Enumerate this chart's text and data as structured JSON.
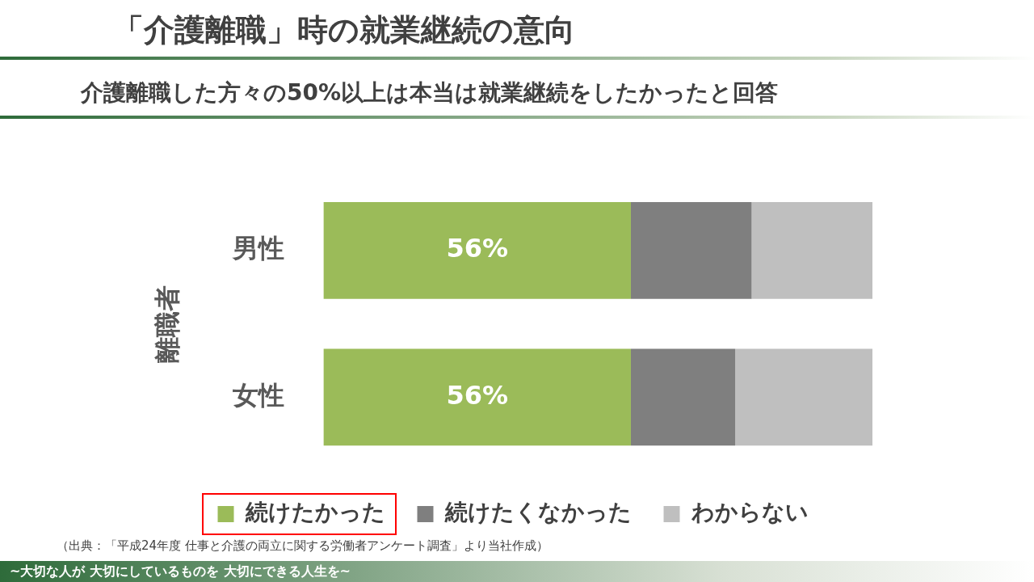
{
  "chart_data": {
    "type": "bar",
    "orientation": "horizontal",
    "stacked": true,
    "title": "「介護離職」時の就業継続の意向",
    "subtitle": "介護離職した方々の50%以上は本当は就業継続をしたかったと回答",
    "ylabel": "離職者",
    "categories": [
      "男性",
      "女性"
    ],
    "xlim": [
      0,
      100
    ],
    "tick_labels": "y",
    "legend": "bottom",
    "series": [
      {
        "name": "続けたかった",
        "color": "#9bbb59",
        "values": [
          56,
          56
        ],
        "value_labels": [
          "56%",
          "56%"
        ]
      },
      {
        "name": "続けたくなかった",
        "color": "#7f7f7f",
        "values": [
          22,
          19
        ]
      },
      {
        "name": "わからない",
        "color": "#bfbfbf",
        "values": [
          22,
          25
        ]
      }
    ],
    "annotations": [
      "（出典：「平成24年度 仕事と介護の両立に関する労働者アンケート調査」より当社作成）",
      "~大切な人が 大切にしているものを 大切にできる人生を~"
    ]
  }
}
